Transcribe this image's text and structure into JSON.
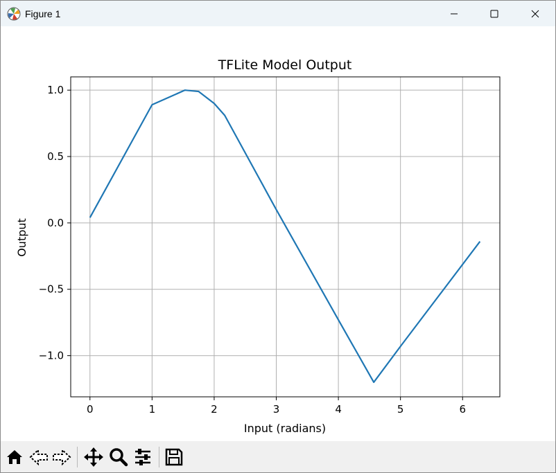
{
  "window": {
    "title": "Figure 1",
    "app_icon": "matplotlib-logo",
    "controls": [
      "minimize-icon",
      "maximize-icon",
      "close-icon"
    ]
  },
  "toolbar": {
    "buttons": [
      "home-icon",
      "back-icon",
      "forward-icon",
      "pan-icon",
      "zoom-icon",
      "configure-subplots-icon",
      "save-icon"
    ]
  },
  "colors": {
    "line": "#1f77b4",
    "grid": "#b0b0b0",
    "titlebar": "#eef4f8",
    "toolbar": "#f0f0f0"
  },
  "chart_data": {
    "type": "line",
    "title": "TFLite Model Output",
    "xlabel": "Input (radians)",
    "ylabel": "Output",
    "xlim": [
      -0.31,
      6.6
    ],
    "ylim": [
      -1.31,
      1.1
    ],
    "xticks": [
      0,
      1,
      2,
      3,
      4,
      5,
      6
    ],
    "xtick_labels": [
      "0",
      "1",
      "2",
      "3",
      "4",
      "5",
      "6"
    ],
    "yticks": [
      -1.0,
      -0.5,
      0.0,
      0.5,
      1.0
    ],
    "ytick_labels": [
      "−1.0",
      "−0.5",
      "0.0",
      "0.5",
      "1.0"
    ],
    "grid": true,
    "series": [
      {
        "x": [
          0.0,
          1.0,
          1.53,
          1.75,
          2.0,
          2.17,
          3.0,
          4.0,
          4.57,
          5.0,
          6.28
        ],
        "y": [
          0.04,
          0.89,
          1.0,
          0.99,
          0.9,
          0.81,
          0.1,
          -0.73,
          -1.2,
          -0.93,
          -0.14
        ]
      }
    ]
  }
}
